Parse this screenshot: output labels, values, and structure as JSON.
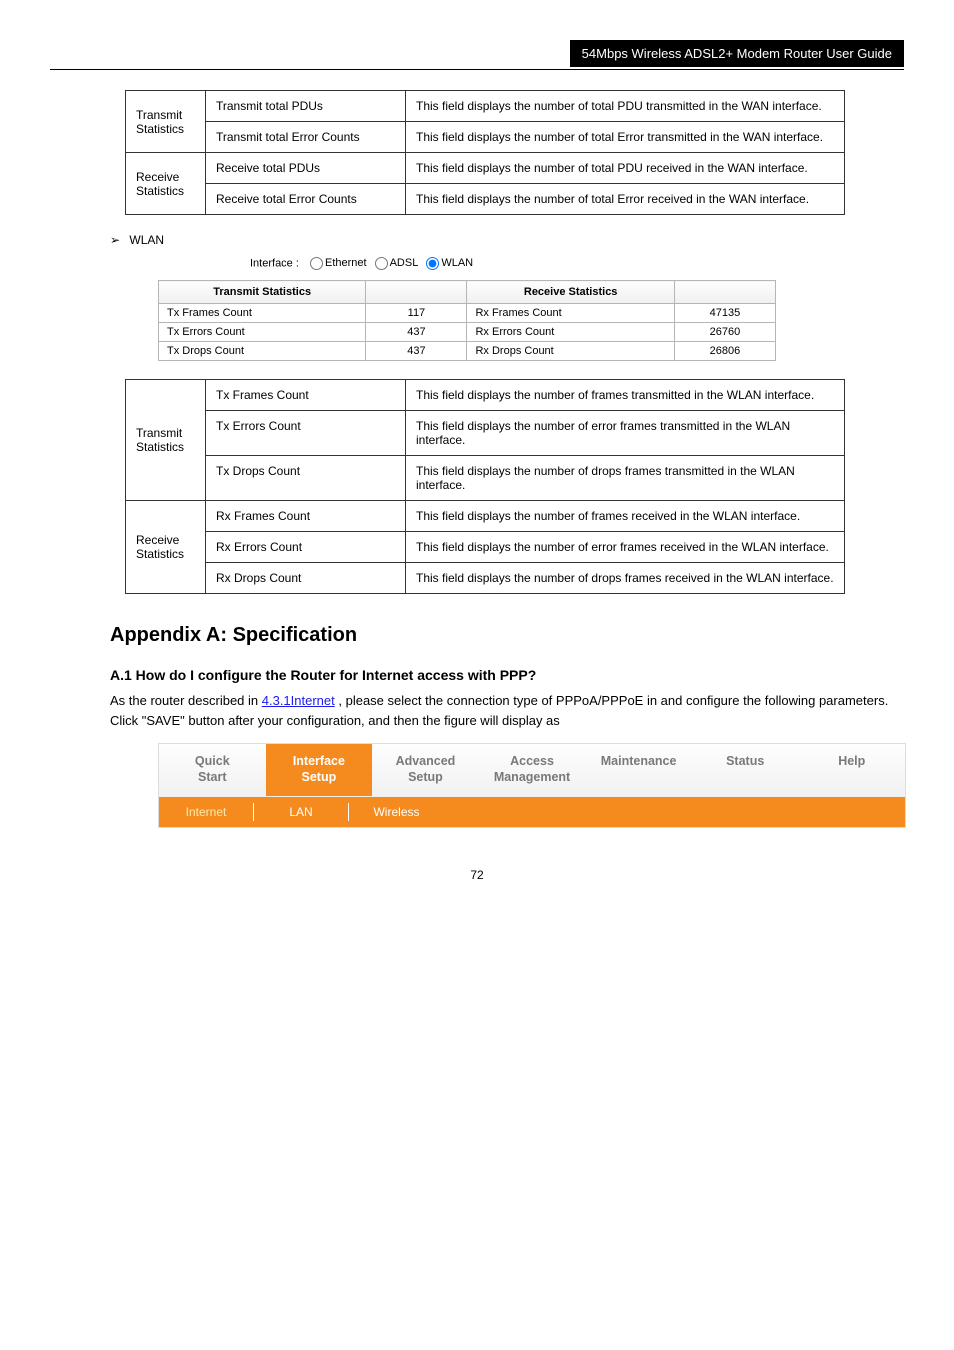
{
  "docHeader": {
    "right": "54Mbps Wireless ADSL2+ Modem Router User Guide"
  },
  "adslParams": {
    "groups": [
      {
        "label": "Transmit Statistics",
        "rows": [
          {
            "name": "Transmit total PDUs",
            "desc": "This field displays the number of total PDU transmitted in the WAN interface."
          },
          {
            "name": "Transmit total Error Counts",
            "desc": "This field displays the number of total Error transmitted in the WAN interface."
          }
        ]
      },
      {
        "label": "Receive Statistics",
        "rows": [
          {
            "name": "Receive total PDUs",
            "desc": "This field displays the number of total PDU received in the WAN interface."
          },
          {
            "name": "Receive total Error Counts",
            "desc": "This field displays the number of total Error received in the WAN interface."
          }
        ]
      }
    ]
  },
  "wlanBullet": "WLAN",
  "interface": {
    "label": "Interface :",
    "opts": [
      "Ethernet",
      "ADSL",
      "WLAN"
    ],
    "selected": "WLAN"
  },
  "wlanStats": {
    "txHeader": "Transmit Statistics",
    "rxHeader": "Receive Statistics",
    "rows": [
      {
        "txLabel": "Tx Frames Count",
        "txVal": "117",
        "rxLabel": "Rx Frames Count",
        "rxVal": "47135"
      },
      {
        "txLabel": "Tx Errors Count",
        "txVal": "437",
        "rxLabel": "Rx Errors Count",
        "rxVal": "26760"
      },
      {
        "txLabel": "Tx Drops Count",
        "txVal": "437",
        "rxLabel": "Rx Drops Count",
        "rxVal": "26806"
      }
    ]
  },
  "wlanParams": {
    "groups": [
      {
        "label": "Transmit Statistics",
        "rows": [
          {
            "name": "Tx Frames Count",
            "desc": "This field displays the number of frames transmitted in the WLAN interface."
          },
          {
            "name": "Tx Errors Count",
            "desc": "This field displays the number of error frames transmitted in the WLAN interface."
          },
          {
            "name": "Tx Drops Count",
            "desc": "This field displays the number of drops frames transmitted in the WLAN interface."
          }
        ]
      },
      {
        "label": "Receive Statistics",
        "rows": [
          {
            "name": "Rx Frames Count",
            "desc": "This field displays the number of frames received in the WLAN interface."
          },
          {
            "name": "Rx Errors Count",
            "desc": "This field displays the number of error frames received in the WLAN interface."
          },
          {
            "name": "Rx Drops Count",
            "desc": "This field displays the number of drops frames received in the WLAN interface."
          }
        ]
      }
    ]
  },
  "section": {
    "heading": "Appendix A: Specification",
    "sub": "A.1 How do I configure the Router for Internet access with PPP?",
    "paraBefore": "As the router described in ",
    "link": "4.3.1Internet",
    "paraAfter": ", please select the connection type of PPPoA/PPPoE in and configure the following parameters. Click \"SAVE\" button after your configuration, and then the figure will display as "
  },
  "nav": {
    "top": [
      {
        "line1": "Quick",
        "line2": "Start"
      },
      {
        "line1": "Interface",
        "line2": "Setup"
      },
      {
        "line1": "Advanced",
        "line2": "Setup"
      },
      {
        "line1": "Access",
        "line2": "Management"
      },
      {
        "line1": "Maintenance",
        "line2": ""
      },
      {
        "line1": "Status",
        "line2": ""
      },
      {
        "line1": "Help",
        "line2": ""
      }
    ],
    "activeTop": 1,
    "sub": [
      "Internet",
      "LAN",
      "Wireless"
    ],
    "activeSub": 0
  },
  "pageNumber": "72"
}
